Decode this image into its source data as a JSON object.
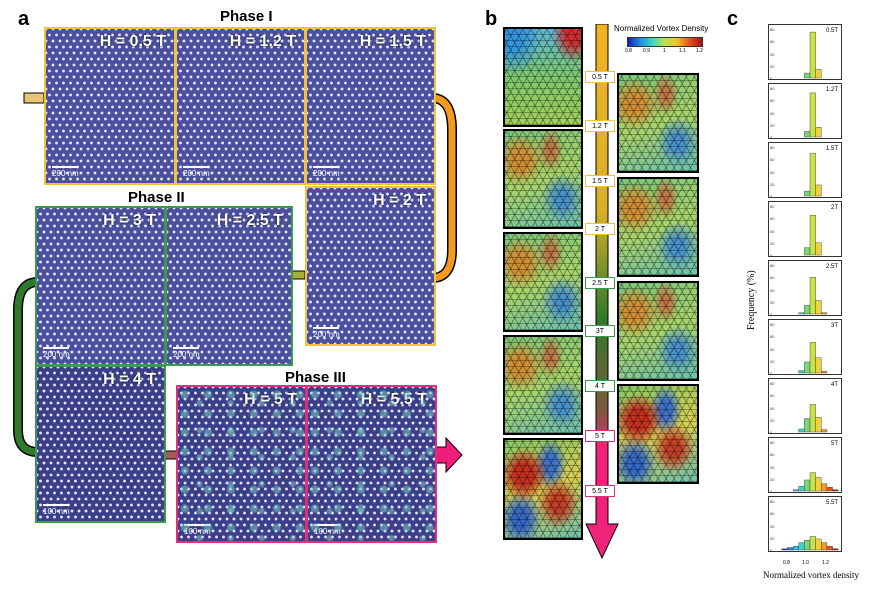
{
  "panel_a": {
    "letter": "a",
    "phase_titles": [
      "Phase I",
      "Phase II",
      "Phase III"
    ],
    "images": [
      {
        "field": "H = 0.5 T",
        "scale": "200 nm"
      },
      {
        "field": "H = 1.2 T",
        "scale": "200 nm"
      },
      {
        "field": "H = 1.5 T",
        "scale": "200 nm"
      },
      {
        "field": "H = 3 T",
        "scale": "200 nm"
      },
      {
        "field": "H = 2.5 T",
        "scale": "200 nm"
      },
      {
        "field": "H = 2 T",
        "scale": "200 nm"
      },
      {
        "field": "H = 4 T",
        "scale": "100 nm"
      },
      {
        "field": "H = 5 T",
        "scale": "100 nm"
      },
      {
        "field": "H = 5.5 T",
        "scale": "100 nm"
      }
    ],
    "colors": {
      "phase_I": "#f2c23a",
      "phase_II": "#3c9a4f",
      "phase_III": "#e0307a"
    }
  },
  "panel_b": {
    "letter": "b",
    "colorbar_title": "Normalized Vortex Density",
    "colorbar_ticks": [
      "0.8",
      "0.9",
      "1",
      "1.1",
      "1.2"
    ],
    "field_tags": [
      "0.5 T",
      "1.2 T",
      "1.5 T",
      "2 T",
      "2.5 T",
      "3T",
      "4 T",
      "5 T",
      "5.5 T"
    ]
  },
  "panel_c": {
    "letter": "c",
    "ylabel": "Frequency (%)",
    "xlabel": "Normalized vortex density",
    "x_ticks": [
      "0.8",
      "1.0",
      "1.2"
    ],
    "y_ticks": [
      "0",
      "20",
      "40",
      "60",
      "80"
    ],
    "hist_labels": [
      "0.5T",
      "1.2T",
      "1.5T",
      "2T",
      "2.5T",
      "3T",
      "4T",
      "5T",
      "5.5T"
    ]
  },
  "chart_data": {
    "type": "bar",
    "title": "",
    "xlabel": "Normalized vortex density",
    "ylabel": "Frequency (%)",
    "xlim": [
      0.75,
      1.3
    ],
    "ylim": [
      0,
      80
    ],
    "bin_centers": [
      0.8,
      0.85,
      0.9,
      0.95,
      1.0,
      1.05,
      1.1,
      1.15,
      1.2,
      1.25
    ],
    "series": [
      {
        "name": "0.5T",
        "values": [
          0,
          0,
          0,
          0,
          8,
          75,
          14,
          0,
          0,
          0
        ]
      },
      {
        "name": "1.2T",
        "values": [
          0,
          0,
          0,
          0,
          9,
          72,
          16,
          0,
          0,
          0
        ]
      },
      {
        "name": "1.5T",
        "values": [
          0,
          0,
          0,
          0,
          8,
          70,
          18,
          0,
          0,
          0
        ]
      },
      {
        "name": "2T",
        "values": [
          0,
          0,
          0,
          0,
          12,
          65,
          20,
          0,
          0,
          0
        ]
      },
      {
        "name": "2.5T",
        "values": [
          0,
          0,
          0,
          2,
          14,
          60,
          22,
          2,
          0,
          0
        ]
      },
      {
        "name": "3T",
        "values": [
          0,
          0,
          0,
          4,
          18,
          50,
          25,
          3,
          0,
          0
        ]
      },
      {
        "name": "4T",
        "values": [
          0,
          0,
          0,
          5,
          22,
          45,
          24,
          4,
          0,
          0
        ]
      },
      {
        "name": "5T",
        "values": [
          0,
          0,
          2,
          8,
          18,
          30,
          22,
          12,
          6,
          2
        ]
      },
      {
        "name": "5.5T",
        "values": [
          2,
          4,
          6,
          12,
          16,
          22,
          18,
          12,
          6,
          2
        ]
      }
    ]
  }
}
